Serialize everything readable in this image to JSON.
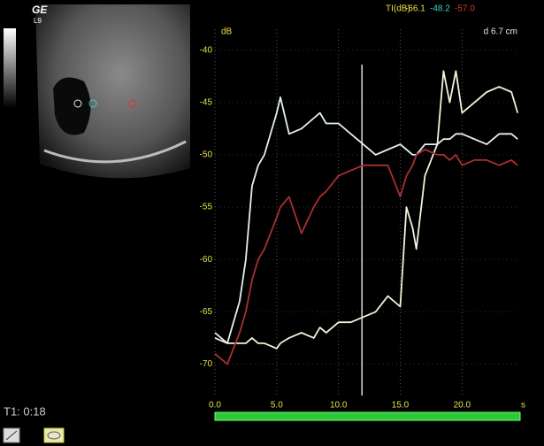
{
  "header": {
    "logo": "GE",
    "probe": "L9",
    "timer": "T1: 0:18"
  },
  "chart_data": {
    "type": "line",
    "y_unit": "dB",
    "depth": "d 6.7 cm",
    "x_unit": "s",
    "readout_label": "TI(dB)",
    "readouts": [
      {
        "value": -66.1,
        "color": "#e8e040"
      },
      {
        "value": -48.2,
        "color": "#40d0c0"
      },
      {
        "value": -57.0,
        "label": "-57.0",
        "color": "#e03030"
      }
    ],
    "x": [
      0,
      1,
      2,
      2.5,
      3,
      3.5,
      4,
      5,
      5.3,
      6,
      7,
      8,
      8.5,
      9,
      10,
      11,
      12,
      13,
      14,
      15,
      15.5,
      16,
      16.3,
      17,
      18,
      18.5,
      19,
      19.5,
      20,
      21,
      22,
      23,
      24,
      24.5
    ],
    "series": [
      {
        "color": "#e4f2ee",
        "values": [
          -67.5,
          -68,
          -64,
          -60,
          -53,
          -51,
          -50,
          -46,
          -44.5,
          -48,
          -47.5,
          -46.5,
          -46,
          -47,
          -47,
          -48,
          -49,
          -50,
          -49.5,
          -49,
          -49.5,
          -50,
          -50,
          -49,
          -49,
          -48.5,
          -48.5,
          -48,
          -48,
          -48.5,
          -49,
          -48,
          -48,
          -48.5
        ]
      },
      {
        "color": "#f2f2dc",
        "values": [
          -67,
          -68,
          -68,
          -68,
          -67.5,
          -68,
          -68,
          -68.5,
          -68,
          -67.5,
          -67,
          -67.5,
          -66.5,
          -67,
          -66,
          -66,
          -65.5,
          -65,
          -63.5,
          -64.5,
          -55,
          -57,
          -59,
          -52,
          -49,
          -42,
          -45,
          -42,
          -46,
          -45,
          -44,
          -43.5,
          -44,
          -46
        ]
      },
      {
        "color": "#a83030",
        "values": [
          -69,
          -70,
          -67,
          -65,
          -62,
          -60,
          -59,
          -56,
          -55,
          -54,
          -57.5,
          -55,
          -54,
          -53.5,
          -52,
          -51.5,
          -51,
          -51,
          -51,
          -54,
          -52,
          -51,
          -50,
          -49.5,
          -50,
          -50,
          -50.5,
          -50,
          -51,
          -50.5,
          -50.5,
          -51,
          -50.5,
          -51
        ]
      }
    ],
    "cursor_x": 11.9,
    "xlim": [
      0,
      24.7
    ],
    "ylim": [
      -73,
      -38
    ],
    "xticks": [
      {
        "value": 0,
        "label": "0.0"
      },
      {
        "value": 5,
        "label": "5.0"
      },
      {
        "value": 10,
        "label": "10.0"
      },
      {
        "value": 15,
        "label": "15.0"
      },
      {
        "value": 20,
        "label": "20.0"
      }
    ],
    "yticks": [
      -40,
      -45,
      -50,
      -55,
      -60,
      -65,
      -70
    ],
    "grid": true
  }
}
